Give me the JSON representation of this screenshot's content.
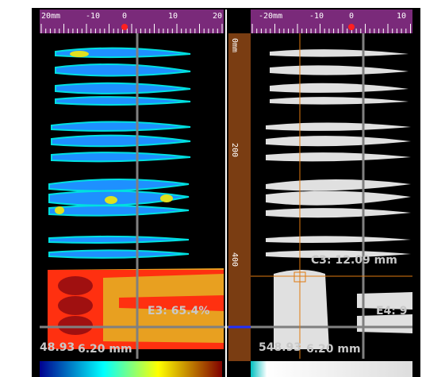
{
  "left_panel": {
    "ruler_labels": [
      "20mm",
      "-10",
      "0",
      "10",
      "20"
    ],
    "gate_label": "E3: 65.4%",
    "depth_label": "48.93",
    "width_label": "6.20 mm"
  },
  "right_panel": {
    "ruler_labels": [
      "-20mm",
      "-10",
      "0",
      "10"
    ],
    "cursor_label": "C3: 12.09 mm",
    "gate_label": "E4: 9",
    "depth_label": "548.93",
    "width_label": "6.20 mm"
  },
  "depth_ruler": {
    "labels": [
      "0mm",
      "200",
      "400"
    ]
  }
}
